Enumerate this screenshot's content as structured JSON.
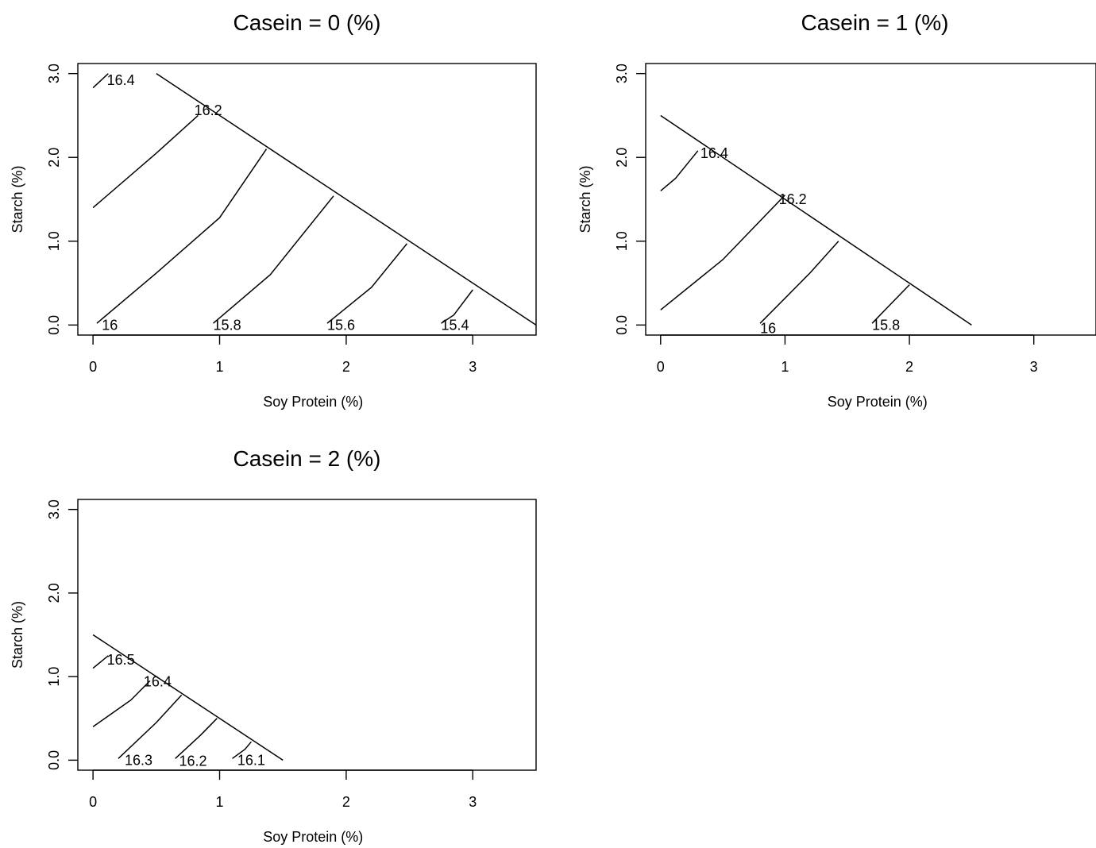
{
  "chart_data": [
    {
      "type": "contour",
      "title": "Casein = 0 (%)",
      "xlabel": "Soy Protein (%)",
      "ylabel": "Starch (%)",
      "xlim": [
        -0.12,
        3.5
      ],
      "ylim": [
        -0.12,
        3.12
      ],
      "x_ticks": [
        0,
        1,
        2,
        3
      ],
      "x_tick_labels": [
        "0",
        "1",
        "2",
        "3"
      ],
      "y_ticks": [
        0,
        1,
        2,
        3
      ],
      "y_tick_labels": [
        "0.0",
        "1.0",
        "2.0",
        "3.0"
      ],
      "constraint_line": [
        [
          0.5,
          3.0
        ],
        [
          3.5,
          0.0
        ]
      ],
      "contours": [
        {
          "label": "16.4",
          "points": [
            [
              0.0,
              2.83
            ],
            [
              0.12,
              3.0
            ]
          ],
          "label_at": [
            0.11,
            2.92
          ]
        },
        {
          "label": "16.2",
          "points": [
            [
              0.0,
              1.4
            ],
            [
              0.5,
              2.05
            ],
            [
              0.83,
              2.5
            ]
          ],
          "label_at": [
            0.8,
            2.56
          ]
        },
        {
          "label": "16",
          "points": [
            [
              0.03,
              0.02
            ],
            [
              0.5,
              0.62
            ],
            [
              1.0,
              1.28
            ],
            [
              1.37,
              2.1
            ]
          ],
          "label_at": [
            0.07,
            0.0
          ]
        },
        {
          "label": "15.8",
          "points": [
            [
              0.95,
              0.02
            ],
            [
              1.4,
              0.6
            ],
            [
              1.9,
              1.54
            ]
          ],
          "label_at": [
            0.95,
            0.0
          ]
        },
        {
          "label": "15.6",
          "points": [
            [
              1.85,
              0.02
            ],
            [
              2.2,
              0.45
            ],
            [
              2.48,
              0.97
            ]
          ],
          "label_at": [
            1.85,
            0.0
          ]
        },
        {
          "label": "15.4",
          "points": [
            [
              2.75,
              0.02
            ],
            [
              2.85,
              0.12
            ],
            [
              3.0,
              0.42
            ]
          ],
          "label_at": [
            2.75,
            0.0
          ]
        }
      ]
    },
    {
      "type": "contour",
      "title": "Casein = 1 (%)",
      "xlabel": "Soy Protein (%)",
      "ylabel": "Starch (%)",
      "xlim": [
        -0.12,
        3.5
      ],
      "ylim": [
        -0.12,
        3.12
      ],
      "x_ticks": [
        0,
        1,
        2,
        3
      ],
      "x_tick_labels": [
        "0",
        "1",
        "2",
        "3"
      ],
      "y_ticks": [
        0,
        1,
        2,
        3
      ],
      "y_tick_labels": [
        "0.0",
        "1.0",
        "2.0",
        "3.0"
      ],
      "constraint_line": [
        [
          0.0,
          2.5
        ],
        [
          2.5,
          0.0
        ]
      ],
      "contours": [
        {
          "label": "16.4",
          "points": [
            [
              0.0,
              1.6
            ],
            [
              0.12,
              1.75
            ],
            [
              0.3,
              2.08
            ]
          ],
          "label_at": [
            0.32,
            2.05
          ]
        },
        {
          "label": "16.2",
          "points": [
            [
              0.0,
              0.18
            ],
            [
              0.5,
              0.78
            ],
            [
              1.0,
              1.55
            ]
          ],
          "label_at": [
            0.95,
            1.5
          ]
        },
        {
          "label": "16",
          "points": [
            [
              0.8,
              0.02
            ],
            [
              1.2,
              0.62
            ],
            [
              1.43,
              1.0
            ]
          ],
          "label_at": [
            0.8,
            -0.04
          ]
        },
        {
          "label": "15.8",
          "points": [
            [
              1.7,
              0.02
            ],
            [
              1.85,
              0.25
            ],
            [
              2.0,
              0.48
            ]
          ],
          "label_at": [
            1.7,
            0.0
          ]
        }
      ]
    },
    {
      "type": "contour",
      "title": "Casein = 2 (%)",
      "xlabel": "Soy Protein (%)",
      "ylabel": "Starch (%)",
      "xlim": [
        -0.12,
        3.5
      ],
      "ylim": [
        -0.12,
        3.12
      ],
      "x_ticks": [
        0,
        1,
        2,
        3
      ],
      "x_tick_labels": [
        "0",
        "1",
        "2",
        "3"
      ],
      "y_ticks": [
        0,
        1,
        2,
        3
      ],
      "y_tick_labels": [
        "0.0",
        "1.0",
        "2.0",
        "3.0"
      ],
      "constraint_line": [
        [
          0.0,
          1.5
        ],
        [
          1.5,
          0.0
        ]
      ],
      "contours": [
        {
          "label": "16.5",
          "points": [
            [
              0.0,
              1.1
            ],
            [
              0.12,
              1.25
            ]
          ],
          "label_at": [
            0.11,
            1.2
          ]
        },
        {
          "label": "16.4",
          "points": [
            [
              0.0,
              0.4
            ],
            [
              0.3,
              0.72
            ],
            [
              0.45,
              0.95
            ]
          ],
          "label_at": [
            0.4,
            0.94
          ]
        },
        {
          "label": "16.3",
          "points": [
            [
              0.2,
              0.02
            ],
            [
              0.5,
              0.45
            ],
            [
              0.7,
              0.78
            ]
          ],
          "label_at": [
            0.25,
            0.0
          ]
        },
        {
          "label": "16.2",
          "points": [
            [
              0.65,
              0.02
            ],
            [
              0.85,
              0.3
            ],
            [
              0.98,
              0.5
            ]
          ],
          "label_at": [
            0.68,
            -0.01
          ]
        },
        {
          "label": "16.1",
          "points": [
            [
              1.1,
              0.02
            ],
            [
              1.2,
              0.13
            ],
            [
              1.25,
              0.22
            ]
          ],
          "label_at": [
            1.14,
            0.0
          ]
        }
      ]
    }
  ]
}
